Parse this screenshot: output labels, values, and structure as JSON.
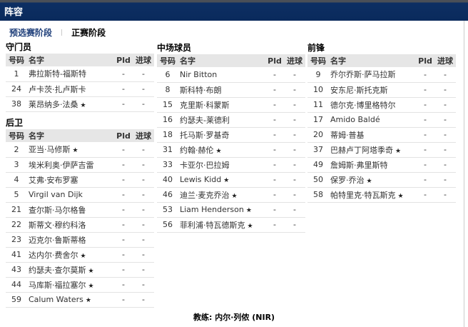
{
  "title": "阵容",
  "tabs": [
    {
      "label": "预选赛阶段"
    },
    {
      "label": "正赛阶段"
    }
  ],
  "columns": {
    "num": "号码",
    "name": "名字",
    "pld": "Pld",
    "goals": "进球"
  },
  "sections": [
    {
      "title": "守门员",
      "players": [
        {
          "num": "1",
          "name": "弗拉斯特-福斯特",
          "star": false,
          "pld": "-",
          "goals": "-"
        },
        {
          "num": "24",
          "name": "卢卡茨·扎卢斯卡",
          "star": false,
          "pld": "-",
          "goals": "-"
        },
        {
          "num": "38",
          "name": "莱昂纳多·法桑",
          "star": true,
          "pld": "-",
          "goals": "-"
        }
      ]
    },
    {
      "title": "后卫",
      "players": [
        {
          "num": "2",
          "name": "亚当·马修斯",
          "star": true,
          "pld": "-",
          "goals": "-"
        },
        {
          "num": "3",
          "name": "埃米利奥·伊萨吉雷",
          "star": false,
          "pld": "-",
          "goals": "-"
        },
        {
          "num": "4",
          "name": "艾弗·安布罗塞",
          "star": false,
          "pld": "-",
          "goals": "-"
        },
        {
          "num": "5",
          "name": "Virgil van Dijk",
          "star": false,
          "pld": "-",
          "goals": "-"
        },
        {
          "num": "21",
          "name": "查尔斯·马尔格鲁",
          "star": false,
          "pld": "-",
          "goals": "-"
        },
        {
          "num": "22",
          "name": "斯蒂文·穆约科洛",
          "star": false,
          "pld": "-",
          "goals": "-"
        },
        {
          "num": "23",
          "name": "迈克尔·鲁斯蒂格",
          "star": false,
          "pld": "-",
          "goals": "-"
        },
        {
          "num": "41",
          "name": "达内尔·费舍尔",
          "star": true,
          "pld": "-",
          "goals": "-"
        },
        {
          "num": "43",
          "name": "约瑟夫·查尔莫斯",
          "star": true,
          "pld": "-",
          "goals": "-"
        },
        {
          "num": "44",
          "name": "马库斯·福拉塞尔",
          "star": true,
          "pld": "-",
          "goals": "-"
        },
        {
          "num": "59",
          "name": "Calum Waters",
          "star": true,
          "pld": "-",
          "goals": "-"
        }
      ]
    },
    {
      "title": "中场球员",
      "players": [
        {
          "num": "6",
          "name": "Nir Bitton",
          "star": false,
          "pld": "-",
          "goals": "-"
        },
        {
          "num": "8",
          "name": "斯科特·布朗",
          "star": false,
          "pld": "-",
          "goals": "-"
        },
        {
          "num": "15",
          "name": "克里斯·科蒙斯",
          "star": false,
          "pld": "-",
          "goals": "-"
        },
        {
          "num": "16",
          "name": "约瑟夫-莱德利",
          "star": false,
          "pld": "-",
          "goals": "-"
        },
        {
          "num": "18",
          "name": "托马斯·罗基奇",
          "star": false,
          "pld": "-",
          "goals": "-"
        },
        {
          "num": "31",
          "name": "约翰·赫伦",
          "star": true,
          "pld": "-",
          "goals": "-"
        },
        {
          "num": "33",
          "name": "卡亚尔·巴拉姆",
          "star": false,
          "pld": "-",
          "goals": "-"
        },
        {
          "num": "40",
          "name": "Lewis Kidd",
          "star": true,
          "pld": "-",
          "goals": "-"
        },
        {
          "num": "46",
          "name": "迪兰·麦克乔治",
          "star": true,
          "pld": "-",
          "goals": "-"
        },
        {
          "num": "53",
          "name": "Liam Henderson",
          "star": true,
          "pld": "-",
          "goals": "-"
        },
        {
          "num": "56",
          "name": "菲利浦·特瓦德斯克",
          "star": true,
          "pld": "-",
          "goals": "-"
        }
      ]
    },
    {
      "title": "前锋",
      "players": [
        {
          "num": "9",
          "name": "乔尔乔斯·萨马拉斯",
          "star": false,
          "pld": "-",
          "goals": "-"
        },
        {
          "num": "10",
          "name": "安东尼·斯托克斯",
          "star": false,
          "pld": "-",
          "goals": "-"
        },
        {
          "num": "11",
          "name": "德尔克·博里格特尔",
          "star": false,
          "pld": "-",
          "goals": "-"
        },
        {
          "num": "17",
          "name": "Amido Baldé",
          "star": false,
          "pld": "-",
          "goals": "-"
        },
        {
          "num": "20",
          "name": "蒂姆·普基",
          "star": false,
          "pld": "-",
          "goals": "-"
        },
        {
          "num": "37",
          "name": "巴赫卢丁阿塔季奇",
          "star": true,
          "pld": "-",
          "goals": "-"
        },
        {
          "num": "49",
          "name": "詹姆斯·弗里斯特",
          "star": false,
          "pld": "-",
          "goals": "-"
        },
        {
          "num": "50",
          "name": "保罗·乔治",
          "star": true,
          "pld": "-",
          "goals": "-"
        },
        {
          "num": "58",
          "name": "帕特里克·特瓦斯克",
          "star": true,
          "pld": "-",
          "goals": "-"
        }
      ]
    }
  ],
  "star_symbol": "★",
  "coach": "教练: 内尔·列侬 (NIR)",
  "colors": {
    "header_bg": "#0a2a5c",
    "tab_active": "#1f3f7a"
  }
}
